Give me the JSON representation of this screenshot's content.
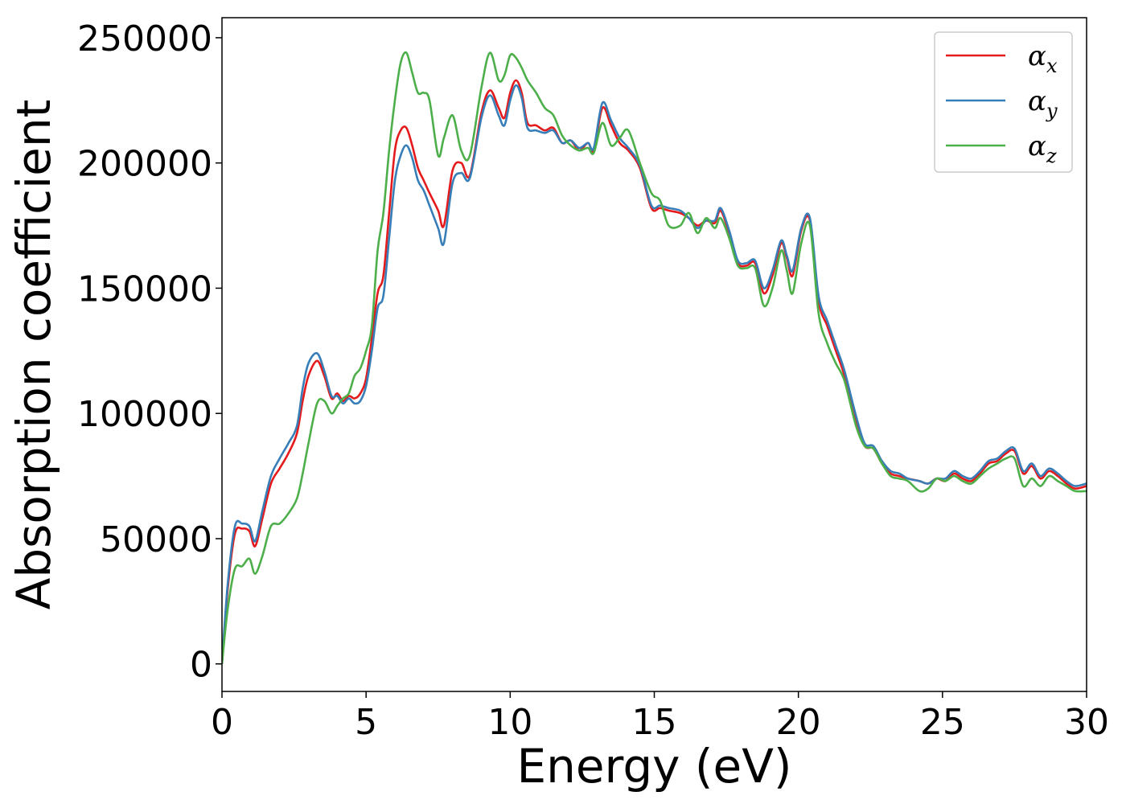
{
  "chart_data": {
    "type": "line",
    "title": "",
    "xlabel": "Energy (eV)",
    "ylabel": "Absorption coefficient",
    "xlim": [
      0,
      30
    ],
    "ylim": [
      -11000,
      258000
    ],
    "xticks": [
      0,
      5,
      10,
      15,
      20,
      25,
      30
    ],
    "yticks": [
      0,
      50000,
      100000,
      150000,
      200000,
      250000
    ],
    "grid": false,
    "legend_position": "top-right",
    "series": [
      {
        "name": "α_x",
        "legend_symbol": "α",
        "legend_subscript": "x",
        "color": "#e41a1c",
        "x": [
          0,
          0.2,
          0.45,
          0.7,
          0.95,
          1.15,
          1.4,
          1.7,
          2.0,
          2.3,
          2.6,
          2.8,
          3.0,
          3.3,
          3.55,
          3.8,
          4.0,
          4.2,
          4.4,
          4.6,
          4.8,
          5.0,
          5.2,
          5.4,
          5.6,
          5.8,
          6.0,
          6.2,
          6.4,
          6.6,
          6.8,
          7.0,
          7.2,
          7.5,
          7.7,
          8.0,
          8.3,
          8.6,
          9.0,
          9.3,
          9.6,
          9.8,
          10.0,
          10.2,
          10.4,
          10.6,
          10.9,
          11.2,
          11.5,
          11.8,
          12.1,
          12.4,
          12.7,
          12.9,
          13.2,
          13.5,
          13.8,
          14.1,
          14.5,
          14.9,
          15.2,
          15.5,
          15.9,
          16.2,
          16.5,
          16.8,
          17.1,
          17.3,
          17.6,
          17.9,
          18.2,
          18.5,
          18.8,
          19.1,
          19.4,
          19.6,
          19.8,
          20.1,
          20.4,
          20.7,
          21.0,
          21.3,
          21.6,
          22.0,
          22.3,
          22.6,
          22.9,
          23.2,
          23.5,
          23.8,
          24.2,
          24.5,
          24.8,
          25.1,
          25.4,
          25.7,
          26.0,
          26.3,
          26.6,
          26.9,
          27.2,
          27.5,
          27.8,
          28.1,
          28.4,
          28.7,
          29.0,
          29.3,
          29.6,
          30
        ],
        "values": [
          0,
          30000,
          52000,
          54000,
          53000,
          47000,
          58000,
          72000,
          78000,
          84000,
          92000,
          105000,
          115000,
          121000,
          115000,
          106000,
          108000,
          105000,
          107000,
          106000,
          108000,
          114000,
          130000,
          148000,
          155000,
          180000,
          205000,
          213000,
          214000,
          207000,
          198000,
          193000,
          188000,
          181000,
          175000,
          197000,
          200000,
          195000,
          220000,
          229000,
          222000,
          218000,
          228000,
          233000,
          228000,
          216000,
          215000,
          213000,
          214000,
          208000,
          209000,
          205000,
          208000,
          205000,
          222000,
          215000,
          208000,
          205000,
          198000,
          182000,
          182000,
          181000,
          180000,
          178000,
          175000,
          177000,
          176000,
          181000,
          172000,
          160000,
          159000,
          160000,
          148000,
          155000,
          168000,
          162000,
          155000,
          173000,
          177000,
          145000,
          135000,
          125000,
          115000,
          97000,
          87000,
          86000,
          80000,
          76000,
          75000,
          74000,
          73000,
          72000,
          74000,
          73000,
          76000,
          74000,
          73000,
          76000,
          80000,
          81000,
          84000,
          85000,
          76000,
          79000,
          74000,
          77000,
          75000,
          72000,
          70000,
          71000
        ]
      },
      {
        "name": "α_y",
        "legend_symbol": "α",
        "legend_subscript": "y",
        "color": "#377eb8",
        "x": [
          0,
          0.2,
          0.45,
          0.7,
          0.95,
          1.15,
          1.4,
          1.7,
          2.0,
          2.3,
          2.6,
          2.8,
          3.0,
          3.3,
          3.55,
          3.8,
          4.0,
          4.2,
          4.4,
          4.6,
          4.8,
          5.0,
          5.2,
          5.4,
          5.6,
          5.8,
          6.0,
          6.2,
          6.4,
          6.6,
          6.8,
          7.0,
          7.2,
          7.5,
          7.7,
          8.0,
          8.3,
          8.6,
          9.0,
          9.3,
          9.6,
          9.8,
          10.0,
          10.2,
          10.4,
          10.6,
          10.9,
          11.2,
          11.5,
          11.8,
          12.1,
          12.4,
          12.7,
          12.9,
          13.2,
          13.5,
          13.8,
          14.1,
          14.5,
          14.9,
          15.2,
          15.5,
          15.9,
          16.2,
          16.5,
          16.8,
          17.1,
          17.3,
          17.6,
          17.9,
          18.2,
          18.5,
          18.8,
          19.1,
          19.4,
          19.6,
          19.8,
          20.1,
          20.4,
          20.7,
          21.0,
          21.3,
          21.6,
          22.0,
          22.3,
          22.6,
          22.9,
          23.2,
          23.5,
          23.8,
          24.2,
          24.5,
          24.8,
          25.1,
          25.4,
          25.7,
          26.0,
          26.3,
          26.6,
          26.9,
          27.2,
          27.5,
          27.8,
          28.1,
          28.4,
          28.7,
          29.0,
          29.3,
          29.6,
          30
        ],
        "values": [
          0,
          32000,
          55000,
          56000,
          55000,
          49000,
          61000,
          75000,
          82000,
          88000,
          95000,
          110000,
          120000,
          124000,
          117000,
          107000,
          107000,
          104000,
          106000,
          104000,
          105000,
          111000,
          125000,
          142000,
          147000,
          170000,
          193000,
          203000,
          207000,
          202000,
          193000,
          189000,
          183000,
          174000,
          168000,
          192000,
          196000,
          194000,
          218000,
          227000,
          219000,
          215000,
          225000,
          231000,
          226000,
          214000,
          213000,
          212000,
          213000,
          208000,
          209000,
          206000,
          208000,
          206000,
          224000,
          217000,
          210000,
          206000,
          199000,
          183000,
          183000,
          182000,
          181000,
          178000,
          174000,
          177000,
          177000,
          182000,
          173000,
          161000,
          160000,
          161000,
          150000,
          157000,
          169000,
          163000,
          157000,
          174000,
          178000,
          147000,
          137000,
          127000,
          117000,
          99000,
          88000,
          87000,
          81000,
          77000,
          76000,
          74000,
          73000,
          72000,
          74000,
          74000,
          77000,
          75000,
          74000,
          77000,
          81000,
          82000,
          85000,
          86000,
          77000,
          80000,
          75000,
          78000,
          76000,
          73000,
          71000,
          72000
        ]
      },
      {
        "name": "α_z",
        "legend_symbol": "α",
        "legend_subscript": "z",
        "color": "#4daf4a",
        "x": [
          0,
          0.2,
          0.45,
          0.7,
          0.95,
          1.15,
          1.4,
          1.7,
          2.0,
          2.3,
          2.6,
          2.8,
          3.0,
          3.3,
          3.55,
          3.8,
          4.0,
          4.2,
          4.4,
          4.6,
          4.8,
          5.0,
          5.2,
          5.4,
          5.6,
          5.8,
          6.0,
          6.2,
          6.4,
          6.6,
          6.8,
          7.0,
          7.2,
          7.5,
          7.7,
          8.0,
          8.3,
          8.6,
          9.0,
          9.3,
          9.6,
          9.8,
          10.0,
          10.2,
          10.4,
          10.6,
          10.9,
          11.2,
          11.5,
          11.8,
          12.1,
          12.4,
          12.7,
          12.9,
          13.2,
          13.5,
          13.8,
          14.1,
          14.5,
          14.9,
          15.2,
          15.5,
          15.9,
          16.2,
          16.5,
          16.8,
          17.1,
          17.3,
          17.6,
          17.9,
          18.2,
          18.5,
          18.8,
          19.1,
          19.4,
          19.6,
          19.8,
          20.1,
          20.4,
          20.7,
          21.0,
          21.3,
          21.6,
          22.0,
          22.3,
          22.6,
          22.9,
          23.2,
          23.5,
          23.8,
          24.2,
          24.5,
          24.8,
          25.1,
          25.4,
          25.7,
          26.0,
          26.3,
          26.6,
          26.9,
          27.2,
          27.5,
          27.8,
          28.1,
          28.4,
          28.7,
          29.0,
          29.3,
          29.6,
          30
        ],
        "values": [
          0,
          22000,
          38000,
          39000,
          42000,
          36000,
          43000,
          55000,
          56000,
          60000,
          66000,
          76000,
          88000,
          104000,
          105000,
          100000,
          103000,
          106000,
          108000,
          115000,
          118000,
          125000,
          135000,
          165000,
          180000,
          205000,
          225000,
          240000,
          244000,
          236000,
          228000,
          228000,
          225000,
          203000,
          210000,
          219000,
          205000,
          203000,
          230000,
          244000,
          233000,
          235000,
          243000,
          242000,
          238000,
          233000,
          228000,
          222000,
          219000,
          211000,
          207000,
          205000,
          206000,
          204000,
          216000,
          207000,
          210000,
          213000,
          200000,
          188000,
          185000,
          175000,
          175000,
          180000,
          172000,
          178000,
          174000,
          178000,
          170000,
          159000,
          158000,
          158000,
          143000,
          150000,
          165000,
          157000,
          148000,
          168000,
          175000,
          140000,
          128000,
          120000,
          113000,
          95000,
          87000,
          86000,
          80000,
          75000,
          74000,
          73000,
          69000,
          70000,
          74000,
          73000,
          75000,
          73000,
          72000,
          75000,
          78000,
          80000,
          82000,
          82000,
          71000,
          74000,
          71000,
          75000,
          73000,
          71000,
          69000,
          69000
        ]
      }
    ]
  }
}
